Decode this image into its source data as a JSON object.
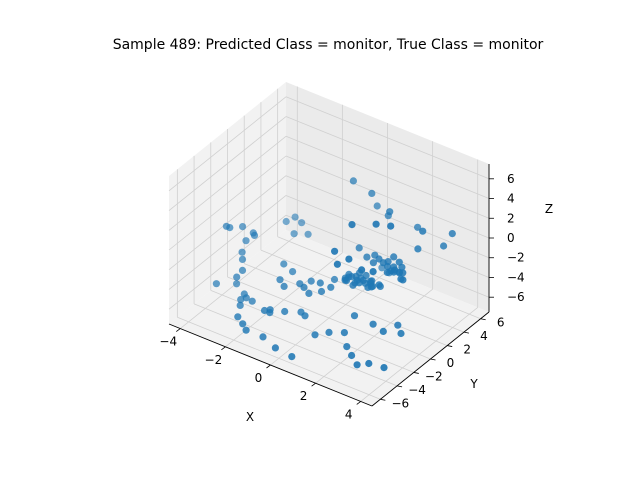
{
  "chart_data": {
    "type": "scatter",
    "title": "Sample 489: Predicted Class = monitor, True Class = monitor",
    "xlabel": "X",
    "ylabel": "Y",
    "zlabel": "Z",
    "xlim": [
      -4.5,
      4.5
    ],
    "ylim": [
      -7,
      7
    ],
    "zlim": [
      -7.5,
      7.5
    ],
    "xticks": [
      "−4",
      "−2",
      "0",
      "2",
      "4"
    ],
    "yticks": [
      "−6",
      "−4",
      "−2",
      "0",
      "2",
      "4",
      "6"
    ],
    "zticks": [
      "−6",
      "−4",
      "−2",
      "0",
      "2",
      "4",
      "6"
    ],
    "grid": true,
    "point_color": "#1f77b4",
    "points": [
      [
        3.2,
        -3.0,
        7.0
      ],
      [
        3.7,
        -2.6,
        7.0
      ],
      [
        2.5,
        -4.0,
        7.0
      ],
      [
        2.1,
        -5.0,
        4.6
      ],
      [
        2.7,
        -4.9,
        4.3
      ],
      [
        2.3,
        -5.2,
        3.6
      ],
      [
        3.6,
        1.5,
        3.6
      ],
      [
        1.8,
        2.4,
        3.3
      ],
      [
        0.6,
        3.5,
        3.3
      ],
      [
        -0.4,
        4.0,
        3.3
      ],
      [
        3.4,
        -3.9,
        3.0
      ],
      [
        3.0,
        -4.2,
        3.0
      ],
      [
        3.8,
        -2.4,
        2.5
      ],
      [
        3.8,
        4.5,
        1.5
      ],
      [
        3.6,
        4.0,
        0.4
      ],
      [
        2.0,
        5.2,
        0.0
      ],
      [
        3.2,
        2.0,
        1.1
      ],
      [
        1.0,
        4.4,
        0.8
      ],
      [
        0.1,
        5.5,
        0.2
      ],
      [
        3.2,
        0.2,
        -0.1
      ],
      [
        2.9,
        0.9,
        -0.3
      ],
      [
        2.6,
        1.4,
        -0.4
      ],
      [
        2.2,
        1.8,
        -0.5
      ],
      [
        3.5,
        -0.6,
        0.0
      ],
      [
        3.3,
        -0.3,
        -0.3
      ],
      [
        2.8,
        0.2,
        -0.4
      ],
      [
        2.6,
        0.4,
        -0.6
      ],
      [
        2.3,
        0.8,
        -0.7
      ],
      [
        2.0,
        1.1,
        -0.8
      ],
      [
        1.7,
        1.4,
        -0.9
      ],
      [
        1.4,
        1.7,
        -1.0
      ],
      [
        2.9,
        0.6,
        -0.6
      ],
      [
        2.5,
        1.0,
        -0.7
      ],
      [
        2.1,
        1.4,
        -0.8
      ],
      [
        2.4,
        0.5,
        -1.0
      ],
      [
        1.6,
        1.0,
        -1.1
      ],
      [
        1.2,
        1.3,
        -1.1
      ],
      [
        0.6,
        2.0,
        -1.2
      ],
      [
        2.1,
        -0.6,
        -2.0
      ],
      [
        1.4,
        -0.4,
        -2.1
      ],
      [
        0.9,
        -0.5,
        -2.5
      ],
      [
        1.9,
        0.1,
        -2.6
      ],
      [
        1.5,
        0.3,
        -2.8
      ],
      [
        1.1,
        -0.1,
        -3.1
      ],
      [
        0.7,
        0.2,
        -3.2
      ],
      [
        0.9,
        0.8,
        -3.0
      ],
      [
        1.3,
        0.6,
        -2.9
      ],
      [
        1.7,
        0.4,
        -2.7
      ],
      [
        2.2,
        0.2,
        -2.4
      ],
      [
        2.0,
        0.6,
        -2.7
      ],
      [
        1.5,
        0.9,
        -3.0
      ],
      [
        1.3,
        0.1,
        -2.8
      ],
      [
        1.0,
        0.4,
        -3.3
      ],
      [
        0.5,
        0.6,
        -3.4
      ],
      [
        0.4,
        1.3,
        -3.6
      ],
      [
        0.8,
        1.5,
        -3.2
      ],
      [
        1.2,
        1.2,
        -2.9
      ],
      [
        1.8,
        -0.2,
        -2.6
      ],
      [
        1.6,
        0.8,
        -2.8
      ],
      [
        0.6,
        1.1,
        -3.5
      ],
      [
        -0.3,
        -1.6,
        -4.2
      ],
      [
        -0.7,
        -1.1,
        -4.3
      ],
      [
        -1.0,
        -0.8,
        -4.4
      ],
      [
        -0.2,
        -0.5,
        -3.8
      ],
      [
        0.0,
        -0.9,
        -4.2
      ],
      [
        0.3,
        -0.6,
        -3.7
      ],
      [
        -1.4,
        -1.6,
        -4.5
      ],
      [
        -1.8,
        -1.0,
        -4.6
      ],
      [
        -1.5,
        -3.0,
        -6.0
      ],
      [
        -1.6,
        -3.4,
        -5.9
      ],
      [
        -1.4,
        -3.3,
        -6.0
      ],
      [
        -1.6,
        -5.6,
        -6.4
      ],
      [
        -1.9,
        -5.2,
        -6.3
      ],
      [
        -2.3,
        -4.7,
        -6.3
      ],
      [
        -1.0,
        -5.2,
        -6.8
      ],
      [
        -0.3,
        -5.6,
        -7.0
      ],
      [
        0.5,
        -5.8,
        -7.0
      ],
      [
        -2.9,
        -2.8,
        -7.0
      ],
      [
        -3.1,
        -2.2,
        -7.0
      ],
      [
        -3.2,
        -1.5,
        -7.0
      ],
      [
        -1.0,
        -2.6,
        -6.0
      ],
      [
        -0.5,
        -2.0,
        -6.0
      ],
      [
        -0.1,
        -2.6,
        -5.6
      ],
      [
        0.6,
        -3.3,
        -6.4
      ],
      [
        1.0,
        -2.7,
        -6.2
      ],
      [
        1.5,
        -2.2,
        -6.1
      ],
      [
        1.9,
        -3.0,
        -6.6
      ],
      [
        2.3,
        -3.5,
        -6.8
      ],
      [
        2.8,
        -4.2,
        -6.8
      ],
      [
        3.1,
        -3.6,
        -6.8
      ],
      [
        3.7,
        -3.4,
        -6.8
      ],
      [
        -3.5,
        -1.6,
        -5.5
      ],
      [
        -3.5,
        -0.9,
        -5.3
      ],
      [
        -3.8,
        -0.1,
        -5.0
      ],
      [
        -4.0,
        0.4,
        -4.8
      ],
      [
        -4.2,
        1.4,
        -4.5
      ],
      [
        -0.9,
        0.3,
        -4.8
      ],
      [
        -1.8,
        0.5,
        -4.8
      ],
      [
        -2.3,
        0.8,
        -4.7
      ],
      [
        1.5,
        -1.0,
        -5.2
      ],
      [
        2.4,
        -1.2,
        -5.1
      ],
      [
        3.0,
        -1.6,
        -5.0
      ],
      [
        3.6,
        -1.1,
        -5.0
      ],
      [
        3.2,
        -0.4,
        -5.0
      ],
      [
        -0.2,
        1.2,
        -4.6
      ],
      [
        0.2,
        1.8,
        -4.4
      ],
      [
        0.6,
        2.2,
        -4.4
      ],
      [
        -3.4,
        5.9,
        -5.0
      ],
      [
        -3.8,
        6.2,
        -5.0
      ],
      [
        -3.9,
        5.4,
        -5.0
      ],
      [
        -3.4,
        5.0,
        -5.5
      ],
      [
        -3.0,
        5.6,
        -5.6
      ],
      [
        -0.1,
        6.6,
        -7.0
      ],
      [
        0.3,
        6.4,
        -7.0
      ],
      [
        0.6,
        6.8,
        -7.0
      ],
      [
        -4.2,
        1.0,
        -2.8
      ],
      [
        -4.4,
        0.0,
        -2.4
      ],
      [
        -4.4,
        -0.4,
        -2.0
      ],
      [
        -3.6,
        0.8,
        -3.0
      ],
      [
        -3.8,
        1.2,
        -3.2
      ],
      [
        -4.4,
        -1.6,
        -7.0
      ],
      [
        -3.8,
        -0.8,
        -7.0
      ],
      [
        -2.7,
        -1.9,
        -7.0
      ],
      [
        -3.0,
        -1.8,
        -7.0
      ]
    ]
  }
}
